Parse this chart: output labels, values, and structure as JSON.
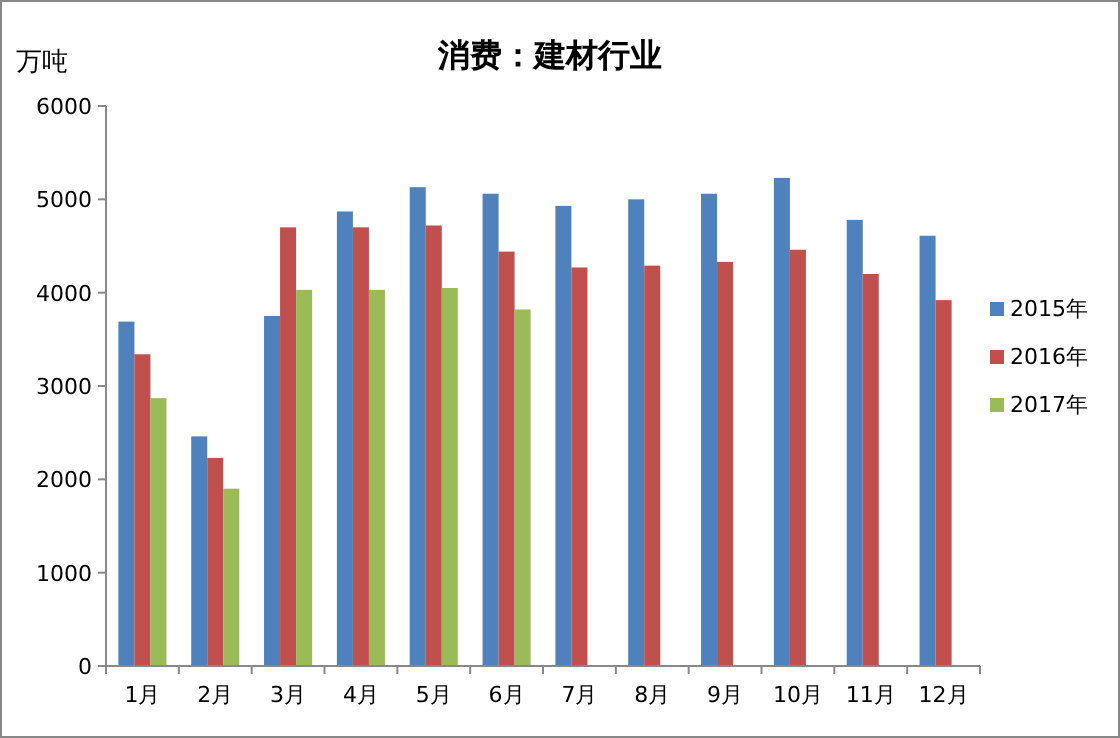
{
  "chart_data": {
    "type": "bar",
    "title": "消费：建材行业",
    "ylabel": "万吨",
    "categories": [
      "1月",
      "2月",
      "3月",
      "4月",
      "5月",
      "6月",
      "7月",
      "8月",
      "9月",
      "10月",
      "11月",
      "12月"
    ],
    "series": [
      {
        "name": "2015年",
        "color": "#4f81bd",
        "values": [
          3690,
          2460,
          3750,
          4870,
          5130,
          5060,
          4930,
          5000,
          5060,
          5230,
          4780,
          4610
        ]
      },
      {
        "name": "2016年",
        "color": "#c0504d",
        "values": [
          3340,
          2230,
          4700,
          4700,
          4720,
          4440,
          4270,
          4290,
          4330,
          4460,
          4200,
          3920
        ]
      },
      {
        "name": "2017年",
        "color": "#9bbb59",
        "values": [
          2870,
          1900,
          4030,
          4030,
          4050,
          3820,
          null,
          null,
          null,
          null,
          null,
          null
        ]
      }
    ],
    "ylim": [
      0,
      6000
    ],
    "yticks": [
      0,
      1000,
      2000,
      3000,
      4000,
      5000,
      6000
    ],
    "legend": "right",
    "grid": false
  }
}
